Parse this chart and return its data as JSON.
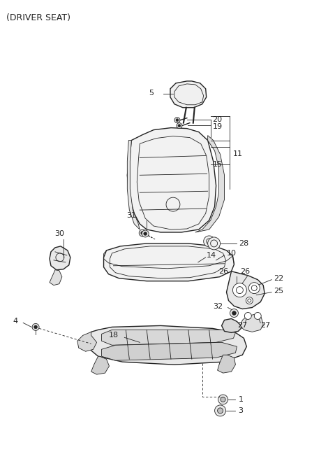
{
  "title": "(DRIVER SEAT)",
  "background_color": "#ffffff",
  "line_color": "#222222",
  "gray_light": "#c8c8c8",
  "gray_mid": "#a0a0a0",
  "figsize": [
    4.8,
    6.56
  ],
  "dpi": 100
}
